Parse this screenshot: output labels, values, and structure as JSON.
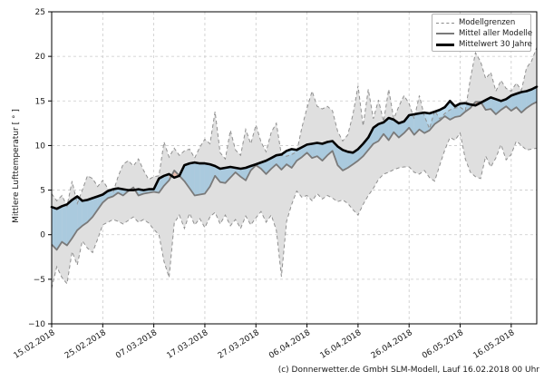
{
  "meta": {
    "caption": "(c) Donnerwetter.de GmbH SLM-Modell, Lauf 16.02.2018 00 Uhr"
  },
  "legend": {
    "items": [
      {
        "label": "Modellgrenzen",
        "style": "dashed-gray"
      },
      {
        "label": "Mittel aller Modelle",
        "style": "solid-gray"
      },
      {
        "label": "Mittelwert 30 Jahre",
        "style": "solid-black-thick"
      }
    ]
  },
  "colors": {
    "band_fill": "#dfdfdf",
    "bound_line": "#909090",
    "model_mean_line": "#7a7a7a",
    "climate_mean_line": "#000000",
    "blue_fill": "#7db8dc",
    "pink_fill": "#f2a285",
    "grid": "#c9c9c9",
    "background": "#ffffff"
  },
  "chart_data": {
    "type": "line",
    "title": "",
    "xlabel": "",
    "ylabel": "Mittlere Lufttemperatur [ ° ]",
    "ylim": [
      -10,
      25
    ],
    "yticks": [
      -10,
      -5,
      0,
      5,
      10,
      15,
      20,
      25
    ],
    "grid": true,
    "legend_position": "upper right",
    "x_unit": "day_index_from_15.02.2018",
    "days": 96,
    "xticks": {
      "days": [
        0,
        10,
        20,
        30,
        40,
        50,
        60,
        70,
        80,
        90
      ],
      "labels": [
        "15.02.2018",
        "25.02.2018",
        "07.03.2018",
        "17.03.2018",
        "27.03.2018",
        "06.04.2018",
        "16.04.2018",
        "26.04.2018",
        "06.05.2018",
        "16.05.2018"
      ]
    },
    "series": [
      {
        "name": "Modellgrenzen (oben)",
        "role": "model_upper_bound",
        "style": "dashed-gray",
        "values": [
          4.6,
          3.8,
          4.4,
          3.2,
          6.0,
          3.5,
          5.0,
          6.6,
          6.3,
          5.4,
          6.1,
          5.2,
          4.7,
          6.5,
          7.9,
          8.3,
          7.7,
          8.5,
          7.2,
          6.2,
          6.5,
          6.6,
          10.4,
          8.7,
          9.7,
          8.9,
          9.4,
          9.6,
          8.6,
          9.8,
          10.7,
          10.2,
          13.8,
          9.2,
          8.5,
          11.7,
          9.5,
          8.9,
          11.8,
          10.2,
          12.3,
          10.4,
          9.3,
          11.5,
          12.5,
          8.9,
          8.8,
          9.0,
          9.3,
          12.0,
          14.2,
          16.1,
          14.4,
          14.1,
          14.4,
          13.9,
          11.6,
          10.5,
          11.2,
          13.5,
          16.7,
          12.2,
          16.3,
          13.0,
          15.1,
          12.7,
          16.3,
          13.0,
          14.4,
          15.6,
          14.7,
          13.0,
          15.6,
          13.3,
          11.9,
          13.9,
          13.0,
          13.6,
          14.0,
          14.2,
          14.3,
          13.9,
          17.5,
          20.4,
          19.4,
          17.5,
          18.2,
          16.1,
          17.3,
          16.4,
          16.1,
          17.0,
          16.2,
          18.7,
          19.5,
          21.0
        ]
      },
      {
        "name": "Modellgrenzen (unten)",
        "role": "model_lower_bound",
        "style": "dashed-gray",
        "values": [
          -6.0,
          -3.6,
          -4.8,
          -5.5,
          -1.9,
          -3.4,
          -0.7,
          -1.5,
          -2.0,
          -0.5,
          1.1,
          1.4,
          1.7,
          1.5,
          1.2,
          1.6,
          2.0,
          1.4,
          1.7,
          1.3,
          0.6,
          0.0,
          -3.0,
          -4.8,
          1.3,
          2.2,
          0.7,
          2.4,
          1.1,
          1.8,
          0.8,
          2.0,
          2.5,
          1.2,
          2.2,
          1.0,
          1.7,
          0.7,
          2.1,
          1.1,
          1.9,
          2.6,
          1.4,
          2.2,
          0.5,
          -4.7,
          1.5,
          3.4,
          4.9,
          4.2,
          4.4,
          3.8,
          4.6,
          4.0,
          4.4,
          4.1,
          3.7,
          3.9,
          3.5,
          2.8,
          2.2,
          3.4,
          4.4,
          5.2,
          6.2,
          6.8,
          7.0,
          7.3,
          7.5,
          7.6,
          7.6,
          7.0,
          6.8,
          7.2,
          6.4,
          6.0,
          7.8,
          9.5,
          10.9,
          10.6,
          11.4,
          8.5,
          7.0,
          6.5,
          6.3,
          8.8,
          7.6,
          8.6,
          10.1,
          8.4,
          9.0,
          10.5,
          10.0,
          9.5,
          9.6,
          9.7
        ]
      },
      {
        "name": "Mittel aller Modelle",
        "role": "model_mean",
        "style": "solid-gray",
        "values": [
          -1.1,
          -1.7,
          -0.8,
          -1.2,
          -0.4,
          0.5,
          1.0,
          1.4,
          2.0,
          2.8,
          3.6,
          4.1,
          4.3,
          4.7,
          4.4,
          4.9,
          5.3,
          4.4,
          4.6,
          4.7,
          4.8,
          4.7,
          5.5,
          6.1,
          7.2,
          6.6,
          6.0,
          5.2,
          4.4,
          4.5,
          4.6,
          5.4,
          6.6,
          5.9,
          5.8,
          6.4,
          7.0,
          6.5,
          6.1,
          7.2,
          7.8,
          7.4,
          6.8,
          7.4,
          7.9,
          7.3,
          7.9,
          7.5,
          8.3,
          8.7,
          9.2,
          8.6,
          8.8,
          8.3,
          8.9,
          9.4,
          7.8,
          7.2,
          7.5,
          7.9,
          8.3,
          8.8,
          9.5,
          10.2,
          10.5,
          11.3,
          10.6,
          11.5,
          10.9,
          11.4,
          12.0,
          11.2,
          11.8,
          11.4,
          11.7,
          12.4,
          12.8,
          13.3,
          12.9,
          13.2,
          13.3,
          13.8,
          14.2,
          14.9,
          14.9,
          14.0,
          14.1,
          13.5,
          14.0,
          14.4,
          13.9,
          14.3,
          13.7,
          14.2,
          14.6,
          14.9
        ]
      },
      {
        "name": "Mittelwert 30 Jahre",
        "role": "climate_mean_30y",
        "style": "solid-black-thick",
        "values": [
          3.1,
          2.9,
          3.2,
          3.4,
          3.9,
          4.3,
          3.8,
          3.9,
          4.1,
          4.3,
          4.5,
          4.9,
          5.1,
          5.2,
          5.1,
          5.0,
          5.0,
          5.1,
          5.0,
          5.1,
          5.1,
          6.3,
          6.6,
          6.8,
          6.4,
          6.6,
          7.8,
          8.0,
          8.1,
          8.0,
          8.0,
          7.9,
          7.7,
          7.4,
          7.5,
          7.6,
          7.5,
          7.4,
          7.5,
          7.7,
          7.9,
          8.1,
          8.3,
          8.6,
          8.9,
          9.0,
          9.4,
          9.6,
          9.5,
          9.8,
          10.1,
          10.2,
          10.3,
          10.2,
          10.4,
          10.5,
          9.9,
          9.5,
          9.3,
          9.2,
          9.6,
          10.2,
          10.9,
          12.0,
          12.4,
          12.6,
          13.1,
          12.9,
          12.5,
          12.7,
          13.4,
          13.5,
          13.6,
          13.7,
          13.6,
          13.8,
          14.0,
          14.3,
          15.0,
          14.4,
          14.7,
          14.75,
          14.6,
          14.5,
          14.8,
          15.1,
          15.4,
          15.2,
          15.0,
          15.2,
          15.6,
          15.8,
          16.0,
          16.1,
          16.3,
          16.6
        ]
      }
    ],
    "fills": {
      "band": "between model_upper_bound and model_lower_bound, gray",
      "blue": "between climate_mean_30y and model_mean where model_mean below climate mean",
      "pink": "between climate_mean_30y and model_mean where model_mean above climate mean"
    }
  }
}
